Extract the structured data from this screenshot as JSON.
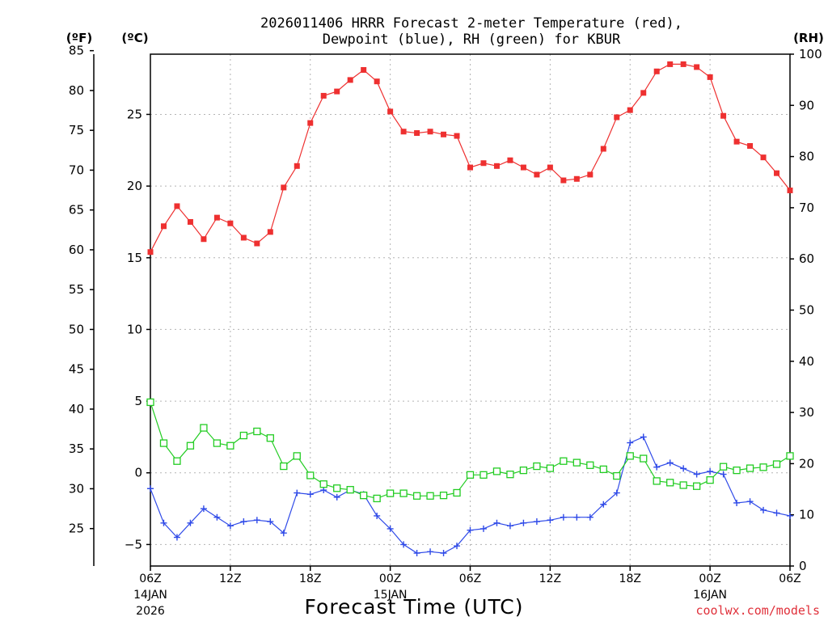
{
  "title": {
    "line1": "2026011406 HRRR Forecast 2-meter Temperature (red),",
    "line2": "Dewpoint (blue), RH (green) for KBUR"
  },
  "units": {
    "fahrenheit": "(ºF)",
    "celsius": "(ºC)",
    "rh": "(RH)"
  },
  "credit": "coolwx.com/models",
  "chart_data": {
    "type": "line",
    "xlabel": "Forecast Time (UTC)",
    "x_hours_from_start": [
      0,
      1,
      2,
      3,
      4,
      5,
      6,
      7,
      8,
      9,
      10,
      11,
      12,
      13,
      14,
      15,
      16,
      17,
      18,
      19,
      20,
      21,
      22,
      23,
      24,
      25,
      26,
      27,
      28,
      29,
      30,
      31,
      32,
      33,
      34,
      35,
      36,
      37,
      38,
      39,
      40,
      41,
      42,
      43,
      44,
      45,
      46,
      47,
      48
    ],
    "x_ticks": [
      {
        "hour": 0,
        "label": "06Z",
        "date1": "14JAN",
        "date2": "2026"
      },
      {
        "hour": 6,
        "label": "12Z",
        "date1": "",
        "date2": ""
      },
      {
        "hour": 12,
        "label": "18Z",
        "date1": "",
        "date2": ""
      },
      {
        "hour": 18,
        "label": "00Z",
        "date1": "15JAN",
        "date2": ""
      },
      {
        "hour": 24,
        "label": "06Z",
        "date1": "",
        "date2": ""
      },
      {
        "hour": 30,
        "label": "12Z",
        "date1": "",
        "date2": ""
      },
      {
        "hour": 36,
        "label": "18Z",
        "date1": "",
        "date2": ""
      },
      {
        "hour": 42,
        "label": "00Z",
        "date1": "16JAN",
        "date2": ""
      },
      {
        "hour": 48,
        "label": "06Z",
        "date1": "",
        "date2": ""
      }
    ],
    "celsius_range": [
      -6.5,
      29.2
    ],
    "celsius_ticks": [
      -5,
      0,
      5,
      10,
      15,
      20,
      25
    ],
    "fahrenheit_ticks": [
      25,
      30,
      35,
      40,
      45,
      50,
      55,
      60,
      65,
      70,
      75,
      80,
      85
    ],
    "rh_range": [
      0,
      100
    ],
    "rh_ticks": [
      0,
      10,
      20,
      30,
      40,
      50,
      60,
      70,
      80,
      90,
      100
    ],
    "grid": true,
    "series": [
      {
        "name": "Temperature",
        "axis": "celsius",
        "color": "#ee3030",
        "marker": "filled-square",
        "values": [
          15.4,
          17.2,
          18.6,
          17.5,
          16.3,
          17.8,
          17.4,
          16.4,
          16.0,
          16.8,
          19.9,
          21.4,
          24.4,
          26.3,
          26.6,
          27.4,
          28.1,
          27.3,
          25.2,
          23.8,
          23.7,
          23.8,
          23.6,
          23.5,
          21.3,
          21.6,
          21.4,
          21.8,
          21.3,
          20.8,
          21.3,
          20.4,
          20.5,
          20.8,
          22.6,
          24.8,
          25.3,
          26.5,
          28.0,
          28.5,
          28.5,
          28.3,
          27.6,
          24.9,
          23.1,
          22.8,
          22.0,
          20.9,
          19.7
        ]
      },
      {
        "name": "Dewpoint",
        "axis": "celsius",
        "color": "#2f4ae8",
        "marker": "plus",
        "values": [
          -1.1,
          -3.5,
          -4.5,
          -3.5,
          -2.5,
          -3.1,
          -3.7,
          -3.4,
          -3.3,
          -3.4,
          -4.2,
          -1.4,
          -1.5,
          -1.2,
          -1.7,
          -1.2,
          -1.5,
          -3.0,
          -3.9,
          -5.0,
          -5.6,
          -5.5,
          -5.6,
          -5.1,
          -4.0,
          -3.9,
          -3.5,
          -3.7,
          -3.5,
          -3.4,
          -3.3,
          -3.1,
          -3.1,
          -3.1,
          -2.2,
          -1.4,
          2.1,
          2.5,
          0.4,
          0.7,
          0.3,
          -0.1,
          0.1,
          -0.1,
          -2.1,
          -2.0,
          -2.6,
          -2.8,
          -3.0
        ]
      },
      {
        "name": "RH",
        "axis": "rh",
        "color": "#22cc22",
        "marker": "open-square",
        "values": [
          32,
          24,
          20.5,
          23.5,
          27,
          24,
          23.5,
          25.5,
          26.3,
          25,
          19.5,
          21.5,
          17.7,
          16,
          15.2,
          14.9,
          13.8,
          13.2,
          14.2,
          14.2,
          13.7,
          13.7,
          13.8,
          14.3,
          17.8,
          17.8,
          18.5,
          17.9,
          18.7,
          19.5,
          19.1,
          20.5,
          20.2,
          19.7,
          18.9,
          17.6,
          21.5,
          21,
          16.6,
          16.3,
          15.8,
          15.6,
          16.8,
          19.4,
          18.7,
          19.1,
          19.3,
          19.9,
          21.5
        ]
      }
    ]
  }
}
